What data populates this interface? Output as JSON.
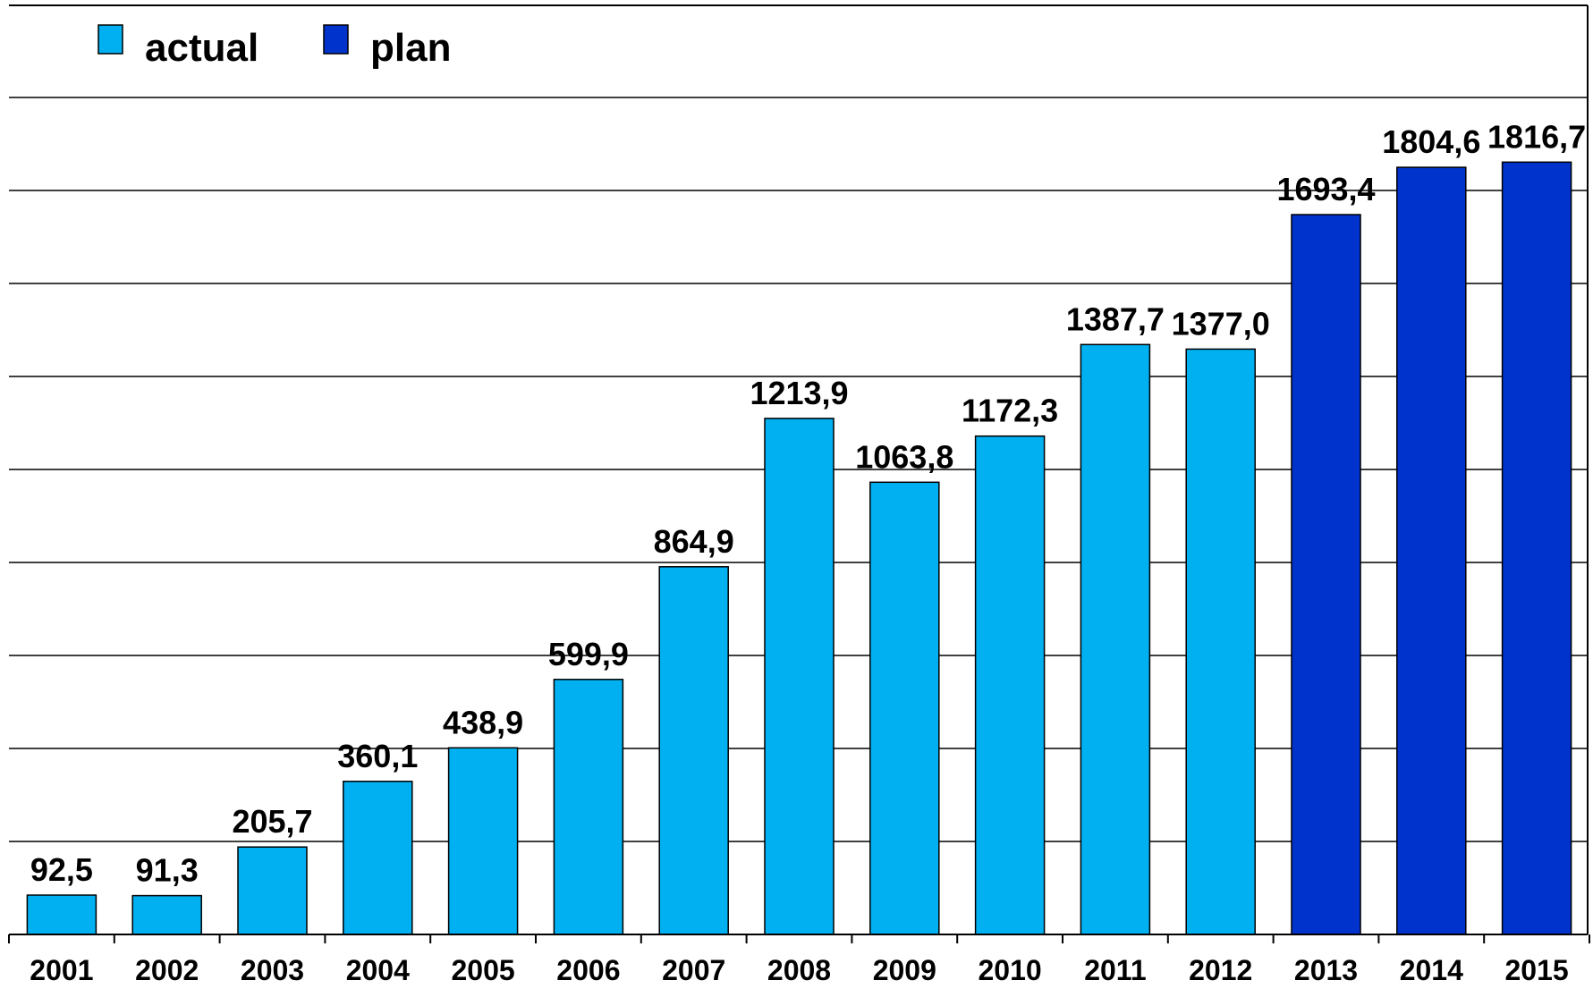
{
  "chart_data": {
    "type": "bar",
    "categories": [
      "2001",
      "2002",
      "2003",
      "2004",
      "2005",
      "2006",
      "2007",
      "2008",
      "2009",
      "2010",
      "2011",
      "2012",
      "2013",
      "2014",
      "2015"
    ],
    "values": [
      92.5,
      91.3,
      205.7,
      360.1,
      438.9,
      599.9,
      864.9,
      1213.9,
      1063.8,
      1172.3,
      1387.7,
      1377.0,
      1693.4,
      1804.6,
      1816.7
    ],
    "value_labels": [
      "92,5",
      "91,3",
      "205,7",
      "360,1",
      "438,9",
      "599,9",
      "864,9",
      "1213,9",
      "1063,8",
      "1172,3",
      "1387,7",
      "1377,0",
      "1693,4",
      "1804,6",
      "1816,7"
    ],
    "bar_groups": [
      "actual",
      "actual",
      "actual",
      "actual",
      "actual",
      "actual",
      "actual",
      "actual",
      "actual",
      "actual",
      "actual",
      "actual",
      "plan",
      "plan",
      "plan"
    ],
    "legend": [
      {
        "key": "actual",
        "label": "actual",
        "color": "#00b0f0"
      },
      {
        "key": "plan",
        "label": "plan",
        "color": "#0033cc"
      }
    ],
    "legend_position": "top-left",
    "ylim": [
      0,
      2000
    ],
    "grid": true,
    "title": "",
    "xlabel": "",
    "ylabel": ""
  }
}
